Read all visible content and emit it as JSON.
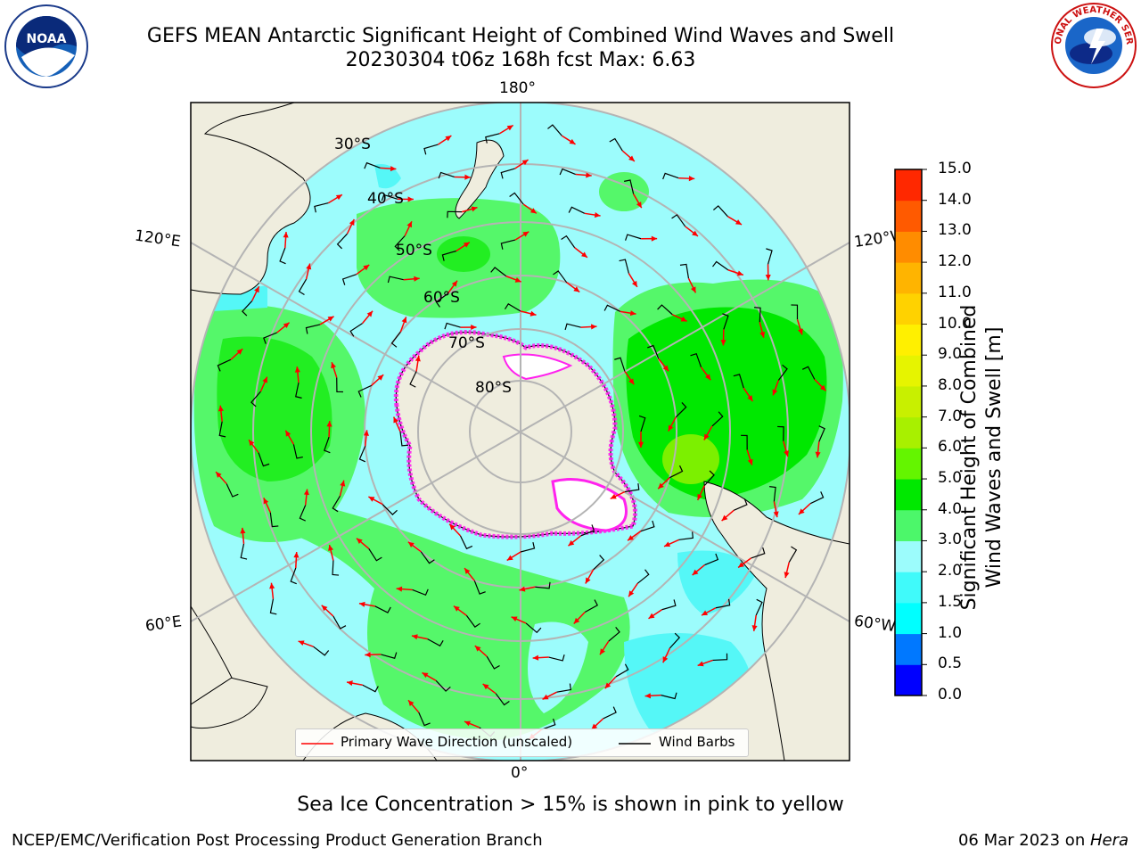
{
  "header": {
    "title_line1": "GEFS MEAN Antarctic Significant Height of Combined Wind Waves and Swell",
    "title_line2": "20230304 t06z 168h fcst   Max: 6.63"
  },
  "logos": {
    "left_text": "NOAA",
    "right_text": "NATIONAL WEATHER SERVICE"
  },
  "map": {
    "lon_labels": {
      "top": "180°",
      "bottom": "0°",
      "left_upper": "120°E",
      "left_lower": "60°E",
      "right_upper": "120°W",
      "right_lower": "60°W"
    },
    "lat_labels": [
      "30°S",
      "40°S",
      "50°S",
      "60°S",
      "70°S",
      "80°S"
    ],
    "colors": {
      "land": "#efedde",
      "ocean_low": "#9cfcfc",
      "ocean_mid": "#55f76a",
      "ocean_high": "#00f000",
      "ice": "#ff22ee",
      "arrow": "#ff0000"
    }
  },
  "legend": {
    "wave_label": "Primary Wave Direction (unscaled)",
    "wind_label": "Wind Barbs"
  },
  "colorbar": {
    "title_line1": "Significant Height of Combined",
    "title_line2": "Wind Waves and Swell [m]",
    "ticks": [
      "0.0",
      "0.5",
      "1.0",
      "1.5",
      "2.0",
      "3.0",
      "4.0",
      "5.0",
      "6.0",
      "7.0",
      "8.0",
      "9.0",
      "10.0",
      "11.0",
      "12.0",
      "13.0",
      "14.0",
      "15.0"
    ],
    "colors": [
      "#0000ff",
      "#0078ff",
      "#00ffff",
      "#40fafa",
      "#9cfcfc",
      "#4cf76a",
      "#00e800",
      "#64f500",
      "#a8f000",
      "#c8f000",
      "#e6f400",
      "#fff000",
      "#ffd200",
      "#ffb400",
      "#ff8c00",
      "#ff5a00",
      "#ff2800"
    ]
  },
  "caption": "Sea Ice Concentration > 15% is shown in pink to yellow",
  "footer": {
    "left": "NCEP/EMC/Verification Post Processing Product Generation Branch",
    "right_date": "06 Mar 2023 on ",
    "right_host": "Hera"
  }
}
